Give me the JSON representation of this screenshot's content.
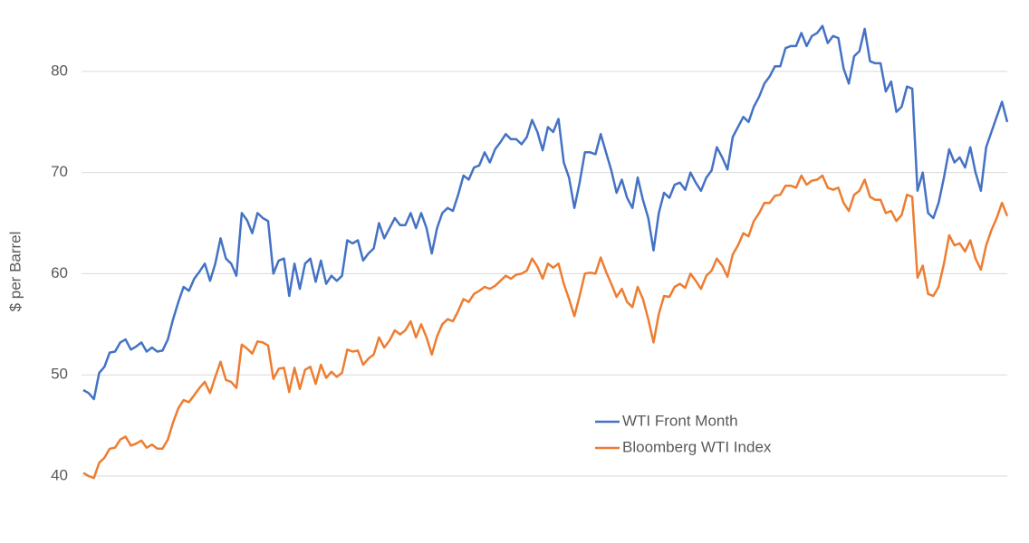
{
  "chart_data": {
    "type": "line",
    "ylabel": "$ per Barrel",
    "ylim": [
      37,
      85
    ],
    "yticks": [
      40,
      50,
      60,
      70,
      80
    ],
    "grid": true,
    "legend_position": "lower right",
    "series": [
      {
        "name": "WTI Front Month",
        "color": "#4472c4",
        "values": [
          48.5,
          48.2,
          47.6,
          50.2,
          50.8,
          52.2,
          52.3,
          53.2,
          53.5,
          52.5,
          52.8,
          53.2,
          52.3,
          52.7,
          52.3,
          52.4,
          53.5,
          55.5,
          57.2,
          58.7,
          58.3,
          59.5,
          60.2,
          61.0,
          59.3,
          61.0,
          63.5,
          61.5,
          61.0,
          59.8,
          66.0,
          65.3,
          64.0,
          66.0,
          65.5,
          65.2,
          60.0,
          61.3,
          61.5,
          57.8,
          61.0,
          58.5,
          61.0,
          61.5,
          59.2,
          61.3,
          59.0,
          59.8,
          59.3,
          59.8,
          63.3,
          63.0,
          63.3,
          61.3,
          62.0,
          62.5,
          65.0,
          63.5,
          64.5,
          65.5,
          64.8,
          64.8,
          66.0,
          64.5,
          66.0,
          64.5,
          62.0,
          64.5,
          66.0,
          66.5,
          66.2,
          67.8,
          69.7,
          69.3,
          70.5,
          70.7,
          72.0,
          71.0,
          72.3,
          73.0,
          73.8,
          73.3,
          73.3,
          72.8,
          73.5,
          75.2,
          74.0,
          72.2,
          74.5,
          74.0,
          75.3,
          71.0,
          69.5,
          66.5,
          69.0,
          72.0,
          72.0,
          71.8,
          73.8,
          72.0,
          70.2,
          68.0,
          69.3,
          67.5,
          66.5,
          69.5,
          67.3,
          65.5,
          62.3,
          66.0,
          68.0,
          67.5,
          68.8,
          69.0,
          68.3,
          70.0,
          69.0,
          68.2,
          69.5,
          70.2,
          72.5,
          71.5,
          70.3,
          73.5,
          74.5,
          75.5,
          75.0,
          76.5,
          77.5,
          78.8,
          79.5,
          80.5,
          80.5,
          82.3,
          82.5,
          82.5,
          83.8,
          82.5,
          83.5,
          83.8,
          84.5,
          82.8,
          83.5,
          83.3,
          80.3,
          78.8,
          81.5,
          82.0,
          84.2,
          81.0,
          80.8,
          80.8,
          78.0,
          79.0,
          76.0,
          76.5,
          78.5,
          78.3,
          68.2,
          70.0,
          66.0,
          65.5,
          67.0,
          69.5,
          72.3,
          71.0,
          71.5,
          70.5,
          72.5,
          70.0,
          68.2,
          72.5,
          74.0,
          75.5,
          77.0,
          75.0
        ]
      },
      {
        "name": "Bloomberg WTI Index",
        "color": "#ed7d31",
        "values": [
          40.3,
          40.0,
          39.8,
          41.3,
          41.8,
          42.7,
          42.8,
          43.6,
          43.9,
          43.0,
          43.2,
          43.5,
          42.8,
          43.1,
          42.7,
          42.7,
          43.6,
          45.3,
          46.7,
          47.5,
          47.3,
          48.0,
          48.7,
          49.3,
          48.2,
          49.8,
          51.3,
          49.5,
          49.3,
          48.7,
          53.0,
          52.6,
          52.1,
          53.3,
          53.2,
          52.9,
          49.6,
          50.6,
          50.7,
          48.3,
          50.7,
          48.6,
          50.5,
          50.8,
          49.1,
          51.0,
          49.7,
          50.3,
          49.8,
          50.2,
          52.5,
          52.3,
          52.4,
          51.0,
          51.6,
          52.0,
          53.7,
          52.7,
          53.4,
          54.4,
          54.0,
          54.4,
          55.3,
          53.7,
          55.0,
          53.7,
          52.0,
          53.8,
          55.0,
          55.5,
          55.3,
          56.3,
          57.5,
          57.2,
          58.0,
          58.3,
          58.7,
          58.5,
          58.8,
          59.3,
          59.8,
          59.5,
          59.9,
          60.0,
          60.3,
          61.5,
          60.7,
          59.5,
          61.0,
          60.6,
          61.0,
          59.0,
          57.5,
          55.8,
          57.8,
          60.0,
          60.1,
          60.0,
          61.6,
          60.2,
          59.0,
          57.7,
          58.5,
          57.2,
          56.7,
          58.7,
          57.5,
          55.5,
          53.2,
          56.0,
          57.8,
          57.7,
          58.7,
          59.0,
          58.6,
          60.0,
          59.3,
          58.5,
          59.8,
          60.3,
          61.5,
          60.8,
          59.7,
          61.9,
          62.8,
          64.0,
          63.7,
          65.2,
          66.0,
          67.0,
          67.0,
          67.7,
          67.8,
          68.7,
          68.7,
          68.5,
          69.7,
          68.8,
          69.2,
          69.3,
          69.7,
          68.5,
          68.3,
          68.5,
          67.0,
          66.2,
          67.8,
          68.2,
          69.3,
          67.6,
          67.3,
          67.3,
          66.0,
          66.2,
          65.2,
          65.8,
          67.8,
          67.6,
          59.6,
          60.8,
          58.0,
          57.8,
          58.7,
          61.0,
          63.8,
          62.8,
          63.0,
          62.2,
          63.3,
          61.5,
          60.4,
          62.8,
          64.3,
          65.5,
          67.0,
          65.7
        ]
      }
    ]
  }
}
